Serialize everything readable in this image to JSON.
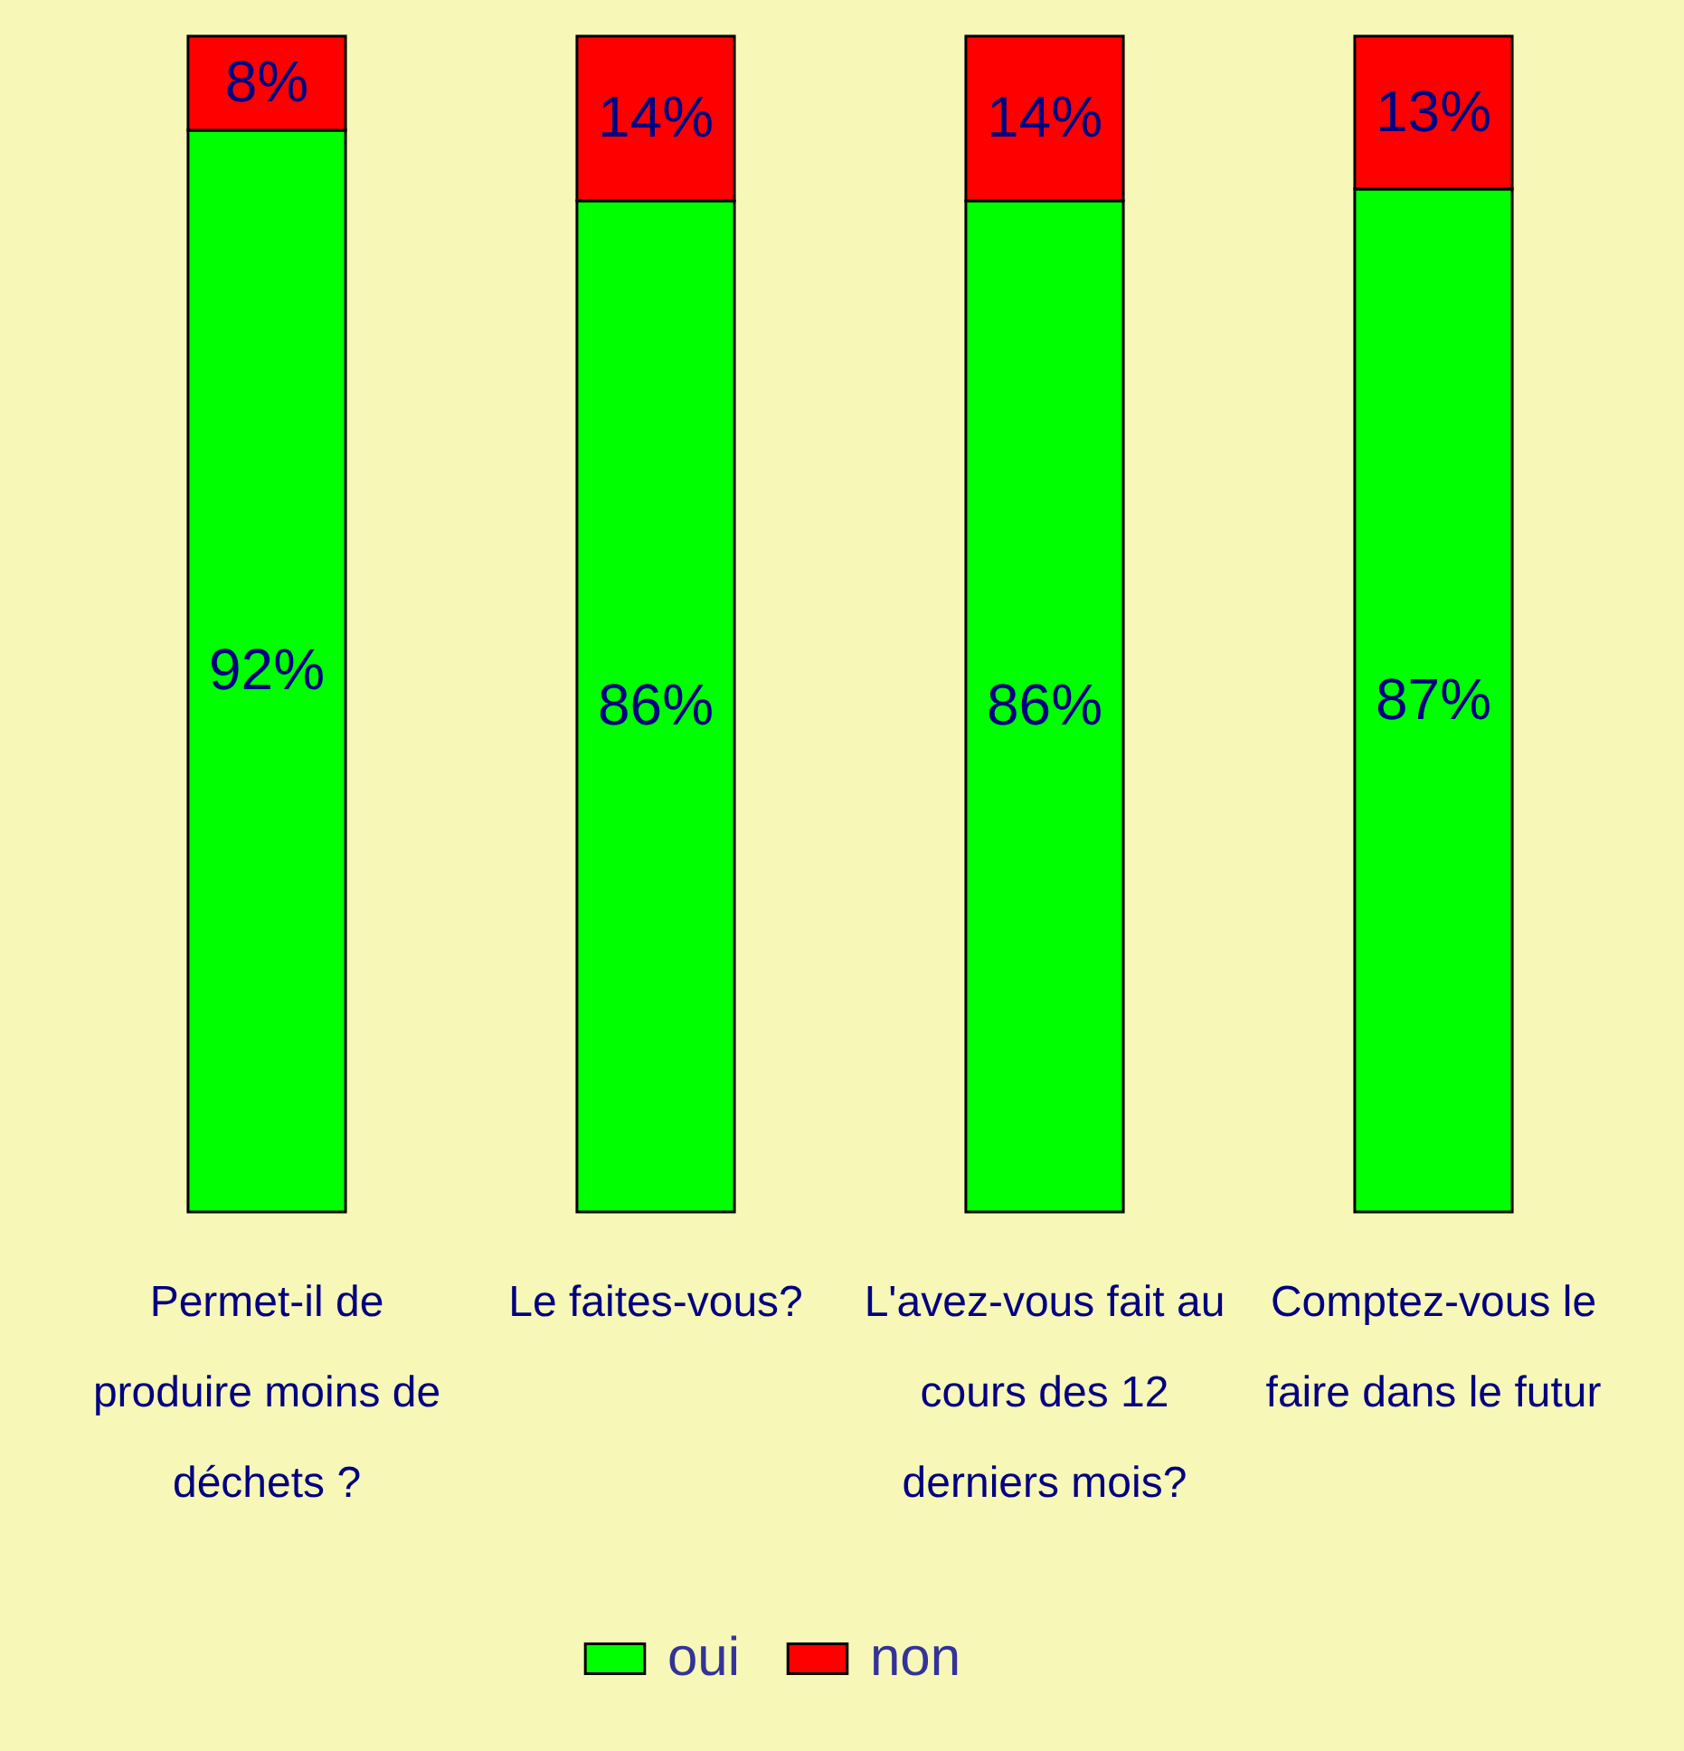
{
  "chart_data": {
    "type": "bar",
    "stacked": true,
    "categories": [
      "Permet-il de produire moins de déchets ?",
      "Le faites-vous?",
      "L'avez-vous fait au cours des 12 derniers mois?",
      "Comptez-vous le faire dans le futur"
    ],
    "ylim": [
      0,
      100
    ],
    "tick_labels": "x",
    "legend": "bottom",
    "series": [
      {
        "name": "oui",
        "color": "#00ff00",
        "values": [
          92,
          86,
          86,
          87
        ],
        "value_labels": [
          "92%",
          "86%",
          "86%",
          "87%"
        ]
      },
      {
        "name": "non",
        "color": "#ff0000",
        "values": [
          8,
          14,
          14,
          13
        ],
        "value_labels": [
          "8%",
          "14%",
          "14%",
          "13%"
        ]
      }
    ]
  }
}
